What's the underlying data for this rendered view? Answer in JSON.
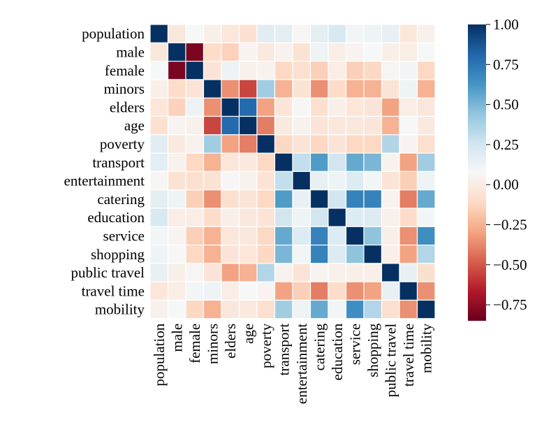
{
  "chart_data": {
    "type": "heatmap",
    "title": "",
    "xlabel": "",
    "ylabel": "",
    "variables": [
      "population",
      "male",
      "female",
      "minors",
      "elders",
      "age",
      "poverty",
      "transport",
      "entertainment",
      "catering",
      "education",
      "service",
      "shopping",
      "public travel",
      "travel time",
      "mobility"
    ],
    "matrix": [
      [
        1.0,
        -0.03,
        0.08,
        0.02,
        -0.04,
        -0.07,
        0.18,
        0.17,
        0.06,
        0.17,
        0.22,
        0.1,
        0.12,
        0.15,
        -0.04,
        0.03
      ],
      [
        -0.03,
        1.0,
        -0.8,
        -0.1,
        -0.14,
        0.05,
        -0.02,
        0.04,
        -0.06,
        0.12,
        0.01,
        0.05,
        0.08,
        0.02,
        0.01,
        0.08
      ],
      [
        0.08,
        -0.8,
        1.0,
        -0.05,
        0.13,
        0.03,
        0.04,
        -0.12,
        -0.08,
        -0.15,
        0.01,
        -0.15,
        -0.12,
        0.06,
        0.1,
        -0.12
      ],
      [
        0.02,
        -0.1,
        -0.05,
        1.0,
        -0.35,
        -0.55,
        0.4,
        -0.25,
        -0.06,
        -0.35,
        -0.1,
        -0.25,
        -0.25,
        -0.05,
        0.12,
        -0.25
      ],
      [
        -0.04,
        -0.14,
        0.13,
        -0.35,
        1.0,
        0.8,
        -0.3,
        -0.04,
        0.07,
        -0.08,
        0.02,
        -0.04,
        -0.05,
        -0.3,
        0.01,
        -0.03
      ],
      [
        -0.07,
        0.05,
        0.03,
        -0.55,
        0.8,
        1.0,
        -0.4,
        -0.02,
        0.04,
        -0.05,
        -0.03,
        -0.03,
        -0.04,
        -0.25,
        0.08,
        -0.02
      ],
      [
        0.18,
        -0.02,
        0.04,
        0.4,
        -0.3,
        -0.4,
        1.0,
        -0.12,
        -0.05,
        -0.12,
        -0.05,
        -0.12,
        -0.12,
        0.35,
        0.05,
        -0.08
      ],
      [
        0.17,
        0.04,
        -0.12,
        -0.25,
        -0.04,
        -0.02,
        -0.12,
        1.0,
        0.3,
        0.6,
        0.25,
        0.55,
        0.5,
        0.04,
        -0.3,
        0.4
      ],
      [
        0.06,
        -0.06,
        -0.08,
        -0.06,
        0.07,
        0.04,
        -0.05,
        0.3,
        1.0,
        0.15,
        0.12,
        0.2,
        0.1,
        -0.05,
        -0.15,
        0.12
      ],
      [
        0.17,
        0.12,
        -0.15,
        -0.35,
        -0.08,
        -0.05,
        -0.12,
        0.6,
        0.15,
        1.0,
        0.25,
        0.7,
        0.7,
        0.05,
        -0.4,
        0.55
      ],
      [
        0.22,
        0.01,
        0.01,
        -0.1,
        0.02,
        -0.03,
        -0.05,
        0.25,
        0.12,
        0.25,
        1.0,
        0.2,
        0.2,
        0.03,
        -0.1,
        0.1
      ],
      [
        0.1,
        0.05,
        -0.15,
        -0.25,
        -0.04,
        -0.03,
        -0.12,
        0.55,
        0.2,
        0.7,
        0.2,
        1.0,
        0.45,
        0.02,
        -0.35,
        0.65
      ],
      [
        0.12,
        0.08,
        -0.12,
        -0.25,
        -0.05,
        -0.04,
        -0.12,
        0.5,
        0.1,
        0.7,
        0.2,
        0.45,
        1.0,
        0.02,
        -0.3,
        0.35
      ],
      [
        0.15,
        0.02,
        0.06,
        -0.05,
        -0.3,
        -0.25,
        0.35,
        0.04,
        -0.05,
        0.05,
        0.03,
        0.02,
        0.02,
        1.0,
        0.15,
        -0.08
      ],
      [
        -0.04,
        0.01,
        0.1,
        0.12,
        0.01,
        0.08,
        0.05,
        -0.3,
        -0.15,
        -0.4,
        -0.1,
        -0.35,
        -0.3,
        0.15,
        1.0,
        -0.35
      ],
      [
        0.03,
        0.08,
        -0.12,
        -0.25,
        -0.03,
        -0.02,
        -0.08,
        0.4,
        0.12,
        0.55,
        0.1,
        0.65,
        0.35,
        -0.08,
        -0.35,
        1.0
      ]
    ],
    "colorbar": {
      "range": [
        -0.85,
        1.0
      ],
      "ticks": [
        -0.75,
        -0.5,
        -0.25,
        0.0,
        0.25,
        0.5,
        0.75,
        1.0
      ],
      "tick_labels": [
        "−0.75",
        "−0.50",
        "−0.25",
        "0.00",
        "0.25",
        "0.50",
        "0.75",
        "1.00"
      ],
      "colormap": "RdBu"
    }
  }
}
